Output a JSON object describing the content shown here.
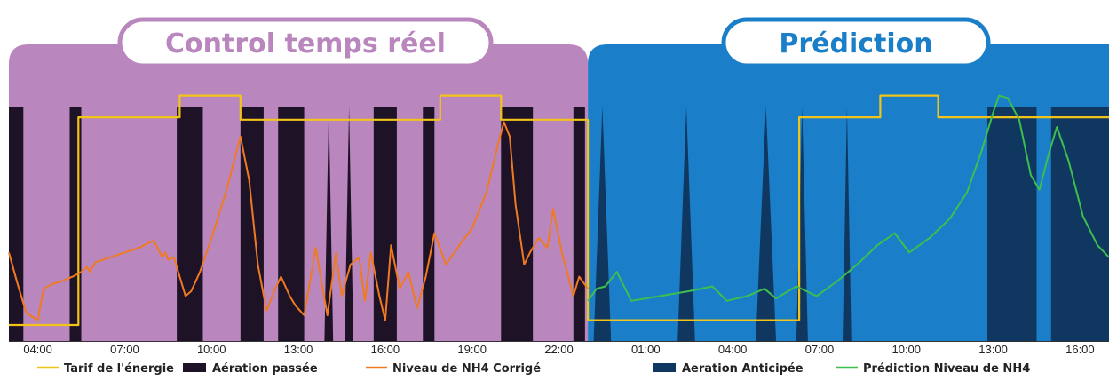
{
  "colors": {
    "realtime_bg": "#b987bd",
    "prediction_bg": "#1a7fc8",
    "aeration_passee": "#1d1226",
    "aeration_anticipee": "#0f3760",
    "tarif": "#f2c318",
    "nh4_corrige": "#f07a22",
    "nh4_prediction": "#3dbf4f",
    "realtime_title": "#b987bd",
    "prediction_title": "#1a7fc8"
  },
  "titles": {
    "realtime": "Control temps réel",
    "prediction": "Prédiction"
  },
  "chart_data": {
    "type": "line",
    "x_unit": "hours",
    "xlim": [
      3,
      41
    ],
    "ylim": [
      0,
      1
    ],
    "split_at": 23,
    "x_tick_values": [
      4,
      7,
      10,
      13,
      16,
      19,
      22,
      25,
      28,
      31,
      34,
      37,
      40
    ],
    "x_tick_labels": [
      "04:00",
      "07:00",
      "10:00",
      "13:00",
      "16:00",
      "19:00",
      "22:00",
      "01:00",
      "04:00",
      "07:00",
      "10:00",
      "13:00",
      "16:00"
    ],
    "legend": [
      {
        "label": "Tarif de l'énergie",
        "marker": "line",
        "color_key": "tarif"
      },
      {
        "label": "Aération passée",
        "marker": "rect",
        "color_key": "aeration_passee"
      },
      {
        "label": "Niveau de NH4 Corrigé",
        "marker": "line",
        "color_key": "nh4_corrige"
      },
      {
        "label": "Aeration Anticipée",
        "marker": "rect",
        "color_key": "aeration_anticipee"
      },
      {
        "label": "Prédiction Niveau de NH4",
        "marker": "line",
        "color_key": "nh4_prediction"
      }
    ],
    "aeration_passee": [
      {
        "shape": "rect",
        "x0": 3.0,
        "x1": 3.5
      },
      {
        "shape": "rect",
        "x0": 5.1,
        "x1": 5.5
      },
      {
        "shape": "rect",
        "x0": 8.8,
        "x1": 9.7
      },
      {
        "shape": "rect",
        "x0": 11.0,
        "x1": 11.8
      },
      {
        "shape": "rect",
        "x0": 12.3,
        "x1": 13.2
      },
      {
        "shape": "tri",
        "x0": 13.9,
        "x1": 14.2
      },
      {
        "shape": "tri",
        "x0": 14.6,
        "x1": 14.9
      },
      {
        "shape": "rect",
        "x0": 15.6,
        "x1": 16.4
      },
      {
        "shape": "rect",
        "x0": 17.3,
        "x1": 17.7
      },
      {
        "shape": "rect",
        "x0": 20.0,
        "x1": 21.1
      },
      {
        "shape": "rect",
        "x0": 22.5,
        "x1": 22.9
      }
    ],
    "aeration_anticipee": [
      {
        "shape": "tri",
        "x0": 23.2,
        "x1": 23.8
      },
      {
        "shape": "tri",
        "x0": 26.1,
        "x1": 26.7
      },
      {
        "shape": "tri",
        "x0": 28.8,
        "x1": 29.5
      },
      {
        "shape": "tri",
        "x0": 30.2,
        "x1": 30.6
      },
      {
        "shape": "tri",
        "x0": 31.8,
        "x1": 32.1
      },
      {
        "shape": "rect",
        "x0": 36.8,
        "x1": 37.3
      },
      {
        "shape": "rect",
        "x0": 37.3,
        "x1": 38.5
      },
      {
        "shape": "rect",
        "x0": 39.0,
        "x1": 41.0
      }
    ],
    "series": [
      {
        "name": "Tarif de l'énergie",
        "color_key": "tarif",
        "x": [
          3.0,
          5.4,
          5.4,
          8.9,
          8.9,
          11.0,
          11.0,
          17.9,
          17.9,
          20.0,
          20.0,
          23.0,
          23.0,
          30.3,
          30.3,
          33.1,
          33.1,
          35.1,
          35.1,
          41.0
        ],
        "y": [
          0.0,
          0.0,
          0.86,
          0.86,
          0.95,
          0.95,
          0.85,
          0.85,
          0.95,
          0.95,
          0.85,
          0.85,
          0.02,
          0.02,
          0.86,
          0.86,
          0.95,
          0.95,
          0.86,
          0.86
        ]
      },
      {
        "name": "Niveau de NH4 Corrigé",
        "color_key": "nh4_corrige",
        "x": [
          3.0,
          3.3,
          3.6,
          4.0,
          4.2,
          4.5,
          4.8,
          5.2,
          5.5,
          5.7,
          5.8,
          6.0,
          6.5,
          7.0,
          7.5,
          8.0,
          8.3,
          8.4,
          8.5,
          8.7,
          8.9,
          9.1,
          9.3,
          9.6,
          10.0,
          10.5,
          11.0,
          11.3,
          11.6,
          11.9,
          12.2,
          12.4,
          12.7,
          12.9,
          13.2,
          13.6,
          13.8,
          14.0,
          14.3,
          14.5,
          14.8,
          15.1,
          15.3,
          15.5,
          15.8,
          16.0,
          16.2,
          16.5,
          16.8,
          17.1,
          17.4,
          17.7,
          18.1,
          18.5,
          19.0,
          19.5,
          19.9,
          20.1,
          20.3,
          20.5,
          20.8,
          21.0,
          21.3,
          21.6,
          21.8,
          22.1,
          22.5,
          22.7,
          23.0
        ],
        "y": [
          0.3,
          0.17,
          0.05,
          0.02,
          0.15,
          0.17,
          0.18,
          0.2,
          0.22,
          0.24,
          0.22,
          0.26,
          0.28,
          0.3,
          0.32,
          0.35,
          0.28,
          0.3,
          0.27,
          0.28,
          0.2,
          0.12,
          0.14,
          0.22,
          0.36,
          0.55,
          0.78,
          0.6,
          0.25,
          0.06,
          0.15,
          0.2,
          0.12,
          0.08,
          0.04,
          0.32,
          0.18,
          0.04,
          0.3,
          0.12,
          0.25,
          0.28,
          0.1,
          0.3,
          0.12,
          0.02,
          0.33,
          0.15,
          0.22,
          0.07,
          0.2,
          0.38,
          0.25,
          0.32,
          0.4,
          0.55,
          0.75,
          0.84,
          0.78,
          0.5,
          0.25,
          0.3,
          0.36,
          0.32,
          0.48,
          0.3,
          0.12,
          0.2,
          0.15
        ]
      },
      {
        "name": "Prédiction Niveau de NH4",
        "color_key": "nh4_prediction",
        "x": [
          23.0,
          23.3,
          23.6,
          24.0,
          24.5,
          25.5,
          26.5,
          27.3,
          27.8,
          28.5,
          29.1,
          29.5,
          30.2,
          30.9,
          31.6,
          32.3,
          33.0,
          33.6,
          34.1,
          34.8,
          35.5,
          36.1,
          36.6,
          37.0,
          37.2,
          37.5,
          37.9,
          38.3,
          38.6,
          38.9,
          39.2,
          39.6,
          40.1,
          40.6,
          41.0
        ],
        "y": [
          0.1,
          0.15,
          0.16,
          0.22,
          0.1,
          0.12,
          0.14,
          0.16,
          0.1,
          0.12,
          0.15,
          0.11,
          0.16,
          0.12,
          0.18,
          0.25,
          0.33,
          0.38,
          0.3,
          0.36,
          0.44,
          0.55,
          0.72,
          0.88,
          0.95,
          0.94,
          0.85,
          0.62,
          0.56,
          0.7,
          0.82,
          0.68,
          0.45,
          0.33,
          0.28
        ]
      }
    ]
  }
}
